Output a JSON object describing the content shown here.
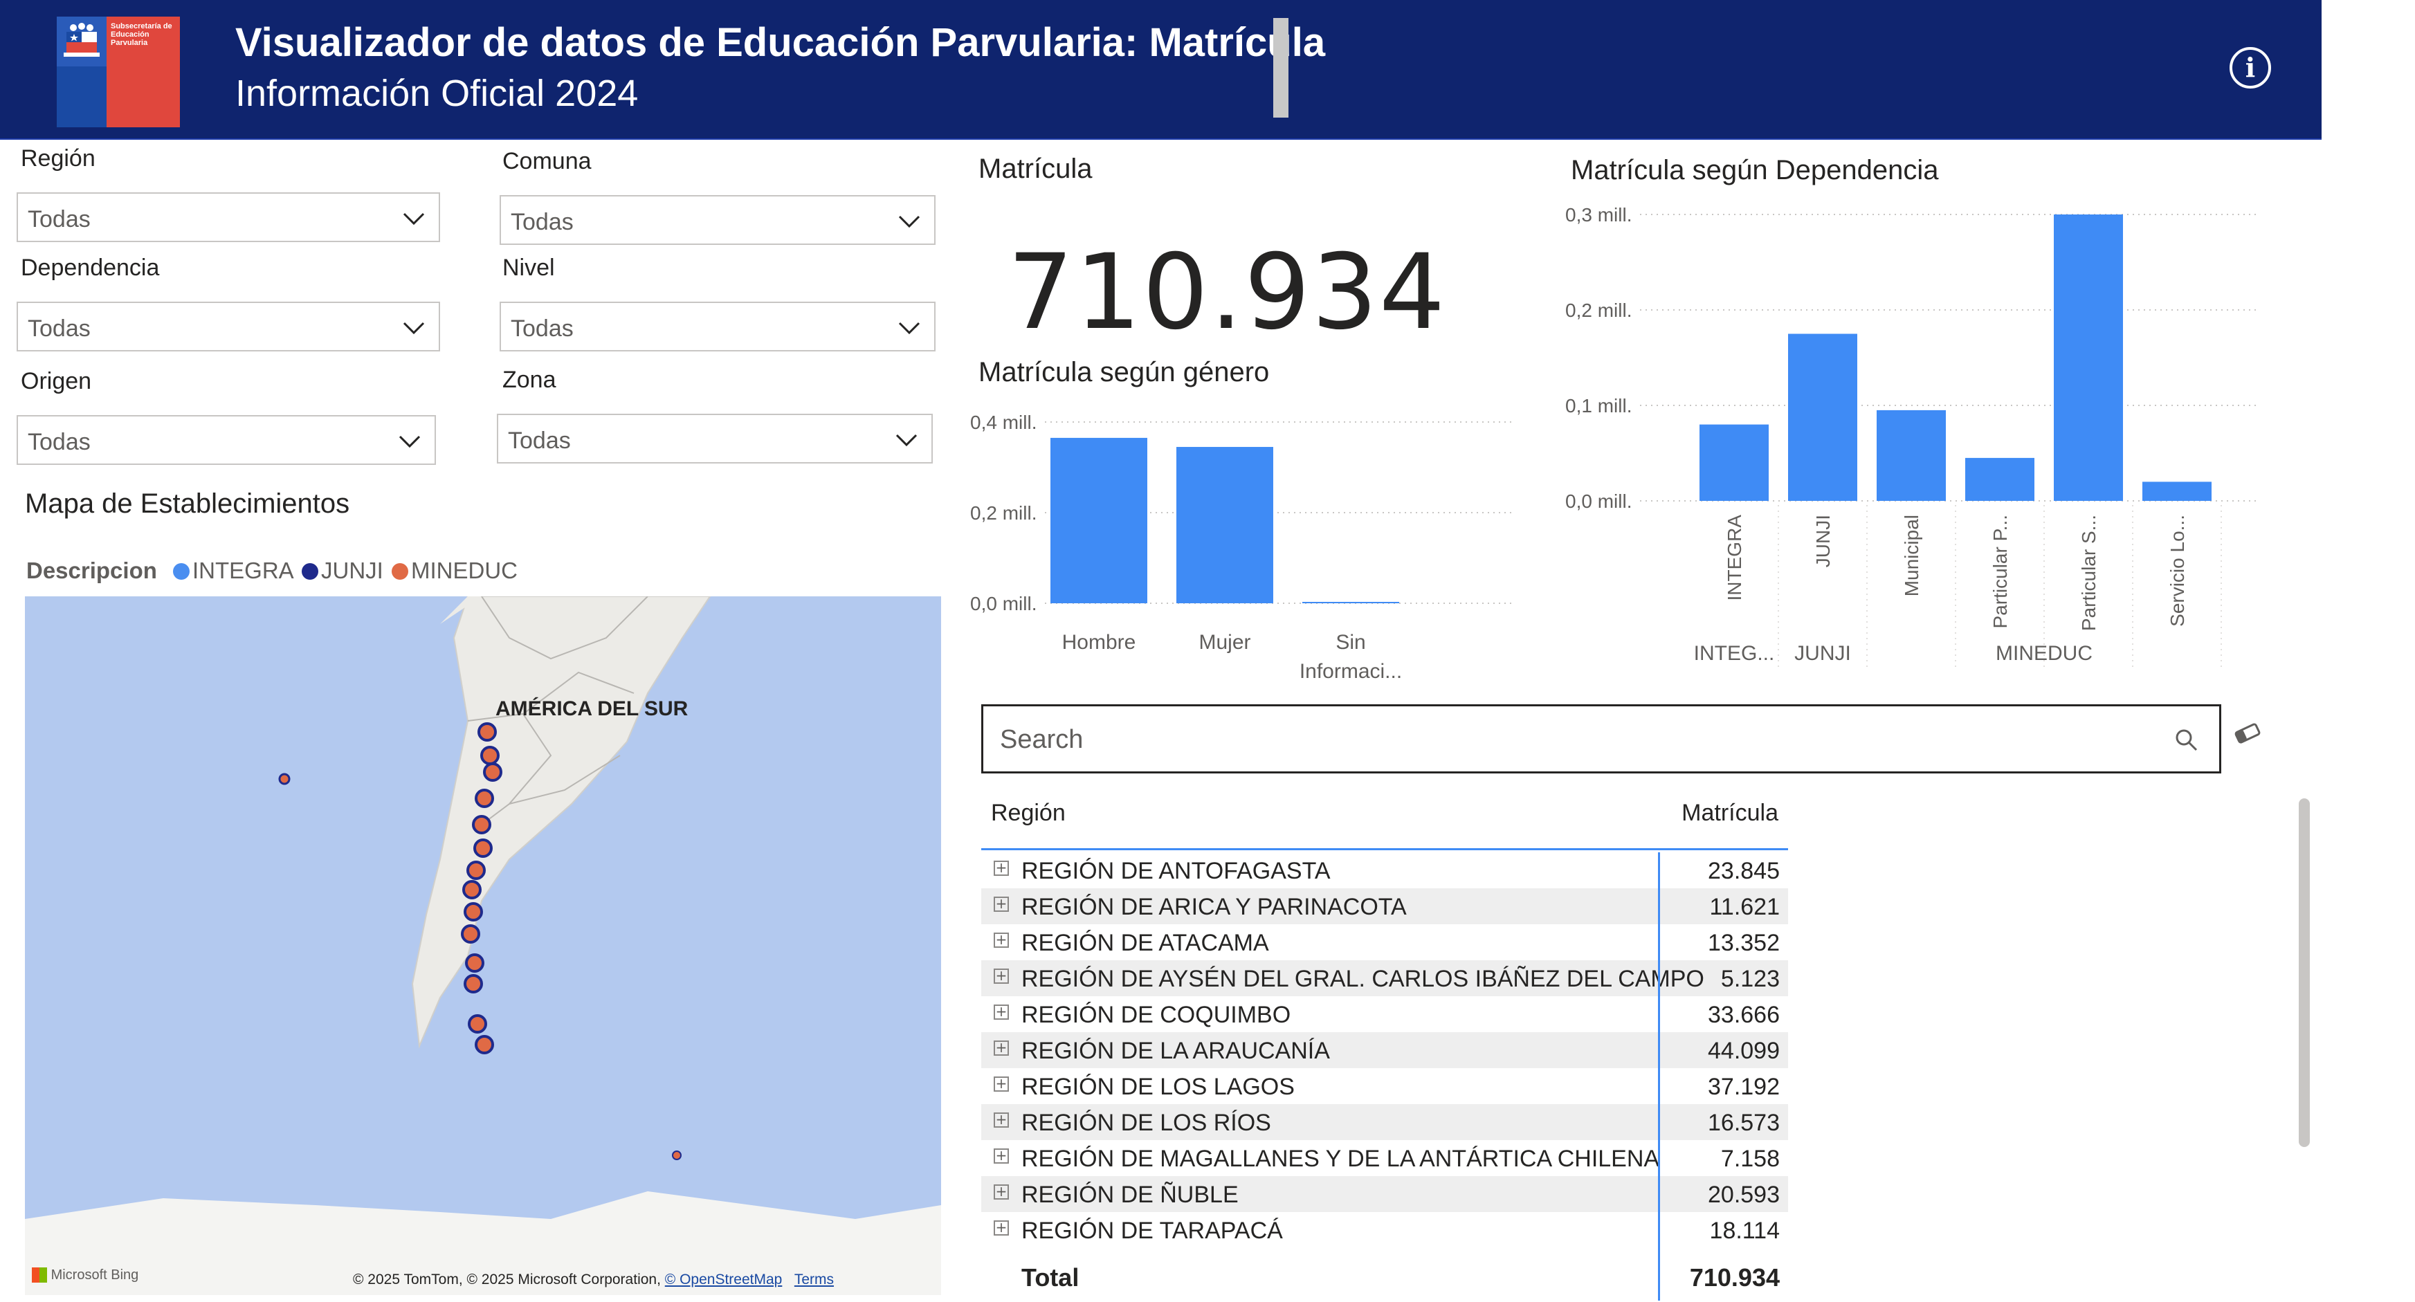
{
  "header": {
    "logo_text": "Subsecretaría de Educación Parvularia",
    "title": "Visualizador de datos de Educación Parvularia: Matrícula",
    "subtitle": "Información Oficial 2024",
    "info_icon": "info-icon"
  },
  "filters": {
    "region": {
      "label": "Región",
      "value": "Todas"
    },
    "comuna": {
      "label": "Comuna",
      "value": "Todas"
    },
    "dependencia": {
      "label": "Dependencia",
      "value": "Todas"
    },
    "nivel": {
      "label": "Nivel",
      "value": "Todas"
    },
    "origen": {
      "label": "Origen",
      "value": "Todas"
    },
    "zona": {
      "label": "Zona",
      "value": "Todas"
    }
  },
  "map": {
    "title": "Mapa de Establecimientos",
    "legend_title": "Descripcion",
    "legend": [
      {
        "label": "INTEGRA",
        "color": "#4a8ef0"
      },
      {
        "label": "JUNJI",
        "color": "#1f2a8c"
      },
      {
        "label": "MINEDUC",
        "color": "#e06a45"
      }
    ],
    "place_label": "AMÉRICA DEL SUR",
    "bing_label": "Microsoft Bing",
    "attribution": "© 2025 TomTom, © 2025 Microsoft Corporation, ",
    "osm_link": "© OpenStreetMap",
    "terms_link": "Terms",
    "colors": {
      "water": "#b3c9ef",
      "land": "#ecebe7",
      "marker_fill": "#e06a45",
      "marker_stroke": "#1f2a8c"
    }
  },
  "kpi": {
    "title": "Matrícula",
    "value": "710.934"
  },
  "gender_chart": {
    "title": "Matrícula según género",
    "chart_data": {
      "type": "bar",
      "categories": [
        "Hombre",
        "Mujer",
        "Sin Informaci..."
      ],
      "values": [
        365000,
        345000,
        2000
      ],
      "ylabel": "",
      "ylim": [
        0,
        400000
      ],
      "y_ticks": [
        "0,0 mill.",
        "0,2 mill.",
        "0,4 mill."
      ],
      "y_tick_values": [
        0,
        200000,
        400000
      ],
      "color": "#3f8bf5",
      "grid": true
    }
  },
  "dependencia_chart": {
    "title": "Matrícula según Dependencia",
    "chart_data": {
      "type": "bar",
      "categories": [
        "INTEGRA",
        "JUNJI",
        "Municipal",
        "Particular P...",
        "Particular S...",
        "Servicio Lo..."
      ],
      "groups": [
        "INTEG...",
        "JUNJI",
        "MINEDUC"
      ],
      "group_of_category": [
        0,
        1,
        2,
        2,
        2,
        2
      ],
      "values": [
        80000,
        175000,
        95000,
        45000,
        300000,
        20000
      ],
      "ylim": [
        0,
        300000
      ],
      "y_ticks": [
        "0,0 mill.",
        "0,1 mill.",
        "0,2 mill.",
        "0,3 mill."
      ],
      "y_tick_values": [
        0,
        100000,
        200000,
        300000
      ],
      "color": "#3f8bf5",
      "grid": true
    }
  },
  "search": {
    "placeholder": "Search",
    "search_icon": "search-icon",
    "eraser_icon": "eraser-icon"
  },
  "table": {
    "headers": {
      "region": "Región",
      "matricula": "Matrícula"
    },
    "rows": [
      {
        "region": "REGIÓN DE ANTOFAGASTA",
        "matricula": "23.845"
      },
      {
        "region": "REGIÓN DE ARICA Y PARINACOTA",
        "matricula": "11.621"
      },
      {
        "region": "REGIÓN DE ATACAMA",
        "matricula": "13.352"
      },
      {
        "region": "REGIÓN DE AYSÉN DEL GRAL. CARLOS IBÁÑEZ DEL CAMPO",
        "matricula": "5.123"
      },
      {
        "region": "REGIÓN DE COQUIMBO",
        "matricula": "33.666"
      },
      {
        "region": "REGIÓN DE LA ARAUCANÍA",
        "matricula": "44.099"
      },
      {
        "region": "REGIÓN DE LOS LAGOS",
        "matricula": "37.192"
      },
      {
        "region": "REGIÓN DE LOS RÍOS",
        "matricula": "16.573"
      },
      {
        "region": "REGIÓN DE MAGALLANES Y DE LA ANTÁRTICA CHILENA",
        "matricula": "7.158"
      },
      {
        "region": "REGIÓN DE ÑUBLE",
        "matricula": "20.593"
      },
      {
        "region": "REGIÓN DE TARAPACÁ",
        "matricula": "18.114"
      }
    ],
    "total_label": "Total",
    "total_value": "710.934"
  }
}
